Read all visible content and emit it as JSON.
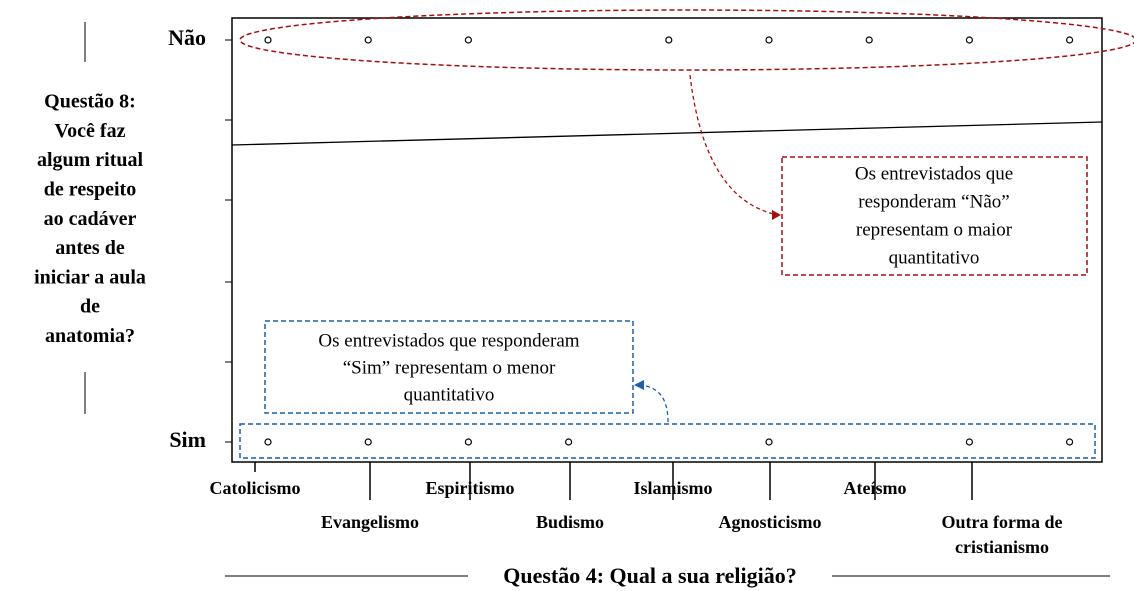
{
  "chart_data": {
    "type": "dot-matrix",
    "x_label": "Questão 4: Qual a sua religião?",
    "y_label_lines": [
      "Questão 8:",
      "Você faz",
      "algum ritual",
      "de respeito",
      "ao cadáver",
      "antes de",
      "iniciar a aula",
      "de",
      "anatomia?"
    ],
    "categories": [
      "Catolicismo",
      "Evangelismo",
      "Espiritismo",
      "Budismo",
      "Islamismo",
      "Agnosticismo",
      "Ateísmo",
      "Outra forma de cristianismo",
      null
    ],
    "rows": [
      {
        "label": "Não",
        "marks": [
          true,
          true,
          true,
          false,
          true,
          true,
          true,
          true,
          true
        ]
      },
      {
        "label": "Sim",
        "marks": [
          true,
          true,
          true,
          true,
          false,
          true,
          false,
          true,
          true
        ]
      }
    ],
    "annotations": [
      {
        "lines": [
          "Os entrevistados que",
          "responderam “Não”",
          "representam o maior",
          "quantitativo"
        ],
        "color": "#a01010"
      },
      {
        "lines": [
          "Os entrevistados que responderam",
          "“Sim” representam o menor",
          "quantitativo"
        ],
        "color": "#1f5fa8"
      }
    ]
  }
}
